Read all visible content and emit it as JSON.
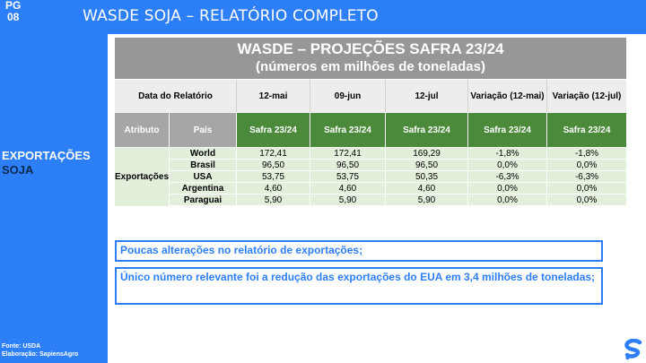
{
  "header": {
    "page_label": "PG",
    "page_number": "08",
    "title": "WASDE SOJA – RELATÓRIO COMPLETO"
  },
  "sidebar": {
    "line1": "EXPORTAÇÕES",
    "line2": "SOJA",
    "source": "Fonte: USDA",
    "credit": "Elaboração: SapiensAgro"
  },
  "table": {
    "title": "WASDE – PROJEÇÕES SAFRA 23/24",
    "subtitle": "(números em milhões de toneladas)",
    "report_date_label": "Data do Relatório",
    "dates": [
      "12-mai",
      "09-jun",
      "12-jul",
      "Variação (12-mai)",
      "Variação (12-jul)"
    ],
    "attribute_label": "Atributo",
    "country_label": "País",
    "crop_labels": [
      "Safra 23/24",
      "Safra 23/24",
      "Safra 23/24",
      "Safra 23/24",
      "Safra 23/24"
    ],
    "attribute": "Exportações",
    "rows": [
      {
        "country": "World",
        "values": [
          "172,41",
          "172,41",
          "169,29",
          "-1,8%",
          "-1,8%"
        ]
      },
      {
        "country": "Brasil",
        "values": [
          "96,50",
          "96,50",
          "96,50",
          "0,0%",
          "0,0%"
        ]
      },
      {
        "country": "USA",
        "values": [
          "53,75",
          "53,75",
          "50,35",
          "-6,3%",
          "-6,3%"
        ]
      },
      {
        "country": "Argentina",
        "values": [
          "4,60",
          "4,60",
          "4,60",
          "0,0%",
          "0,0%"
        ]
      },
      {
        "country": "Paraguai",
        "values": [
          "5,90",
          "5,90",
          "5,90",
          "0,0%",
          "0,0%"
        ]
      }
    ]
  },
  "notes": [
    "Poucas alterações no relatório de exportações;",
    "Único número relevante foi a redução das exportações do EUA em 3,4 milhões de toneladas;"
  ],
  "colors": {
    "brand_blue": "#2d7ff9",
    "table_green": "#4a8a3a",
    "row_green": "#e2efda"
  },
  "logo": {
    "icon": "brand-s-icon"
  }
}
